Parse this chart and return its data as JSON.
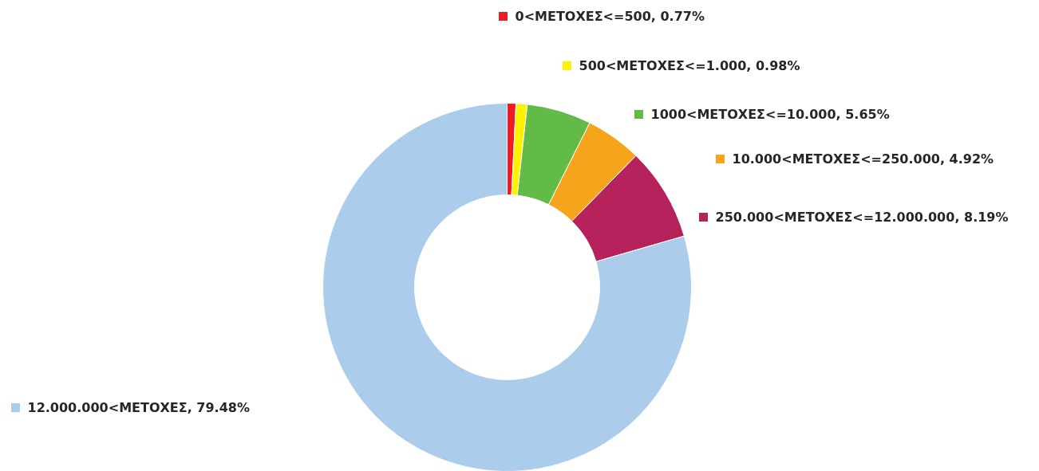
{
  "chart_data": {
    "type": "donut",
    "categories": [
      "0<ΜΕΤΟΧΕΣ<=500",
      "500<ΜΕΤΟΧΕΣ<=1.000",
      "1000<ΜΕΤΟΧΕΣ<=10.000",
      "10.000<ΜΕΤΟΧΕΣ<=250.000",
      "250.000<ΜΕΤΟΧΕΣ<=12.000.000",
      "12.000.000<ΜΕΤΟΧΕΣ"
    ],
    "values": [
      0.77,
      0.98,
      5.65,
      4.92,
      8.19,
      79.48
    ],
    "colors": [
      "#ed1c24",
      "#fff200",
      "#61bb46",
      "#f7a41d",
      "#b5225c",
      "#abcdeb"
    ],
    "legend": "top left",
    "value_labels": [
      "0.77%",
      "0.98%",
      "5.65%",
      "4.92%",
      "8.19%",
      "79.48%"
    ]
  }
}
